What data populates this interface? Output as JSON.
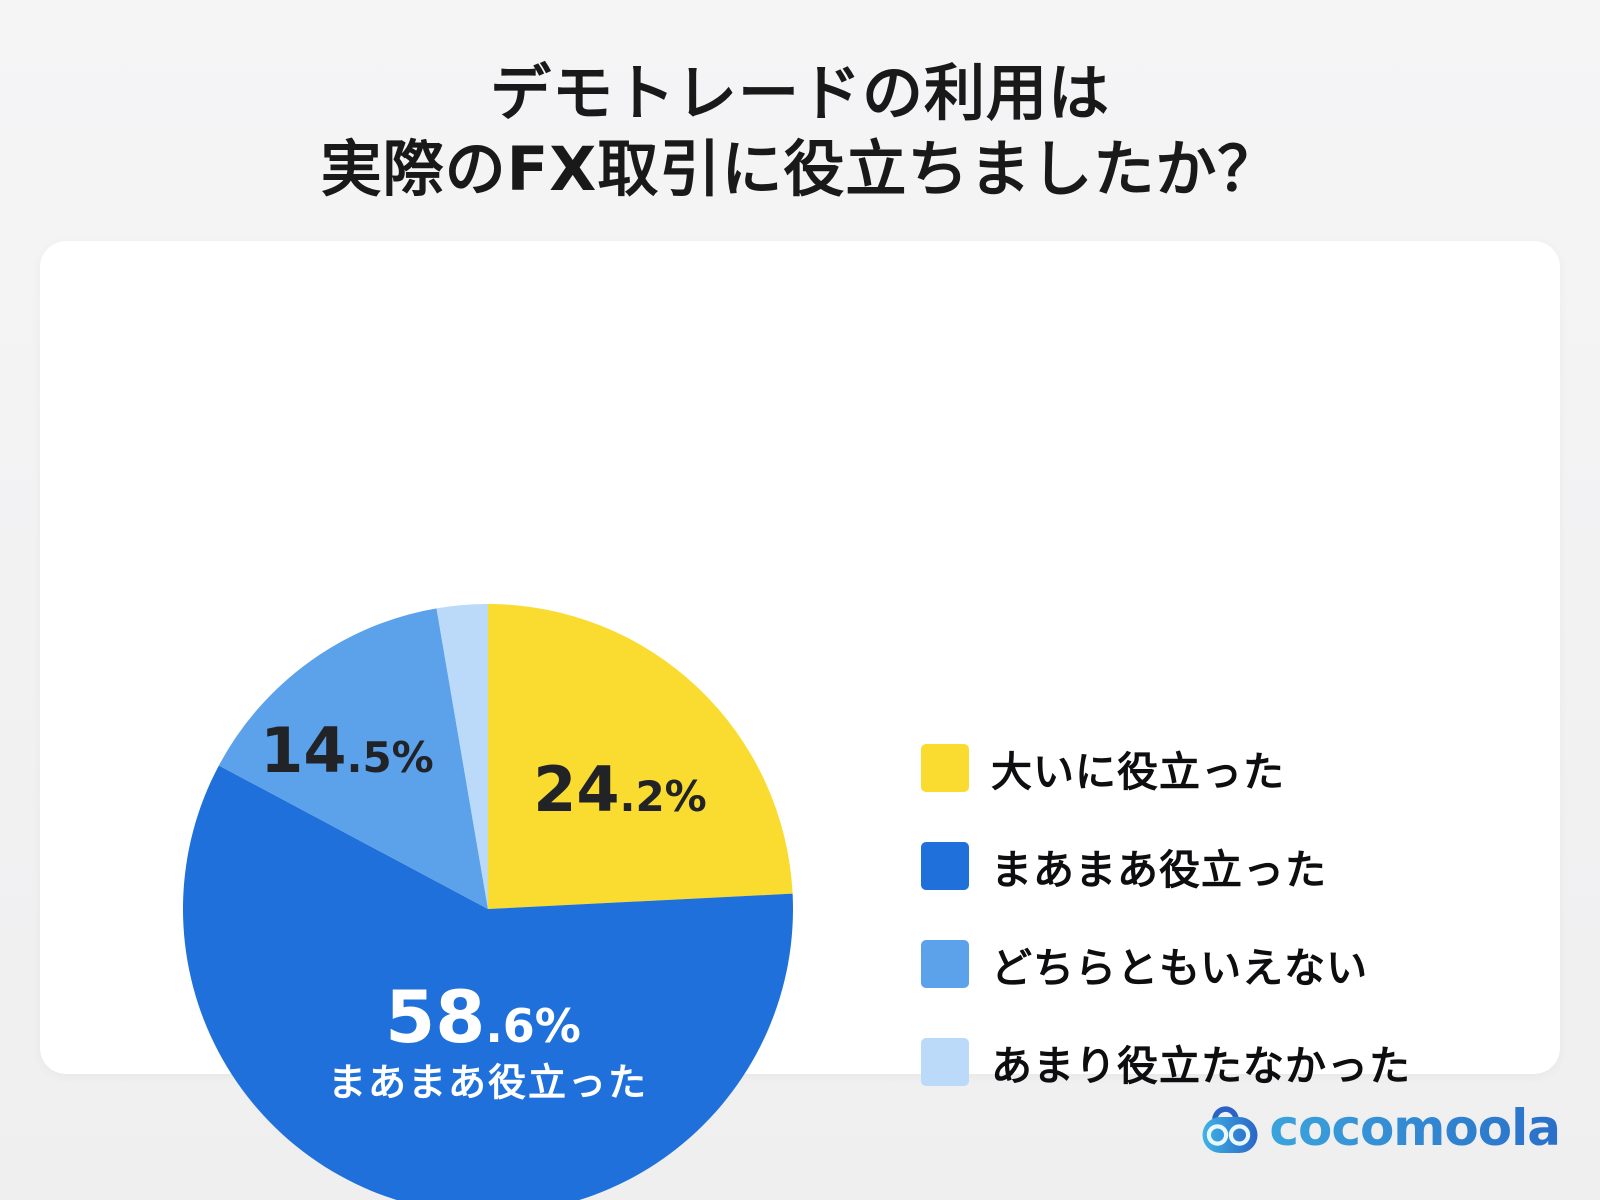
{
  "title": {
    "line1": "デモトレードの利用は",
    "line2": "実際のFX取引に役立ちましたか？"
  },
  "chart_data": {
    "type": "pie",
    "title": "デモトレードの利用は実際のFX取引に役立ちましたか？",
    "direction": "clockwise",
    "start_angle_deg": 0,
    "total": 100,
    "legend_position": "right",
    "slices": [
      {
        "label": "大いに役立った",
        "value": 24.2,
        "color": "#F9DC2F",
        "pct_main": "24",
        "pct_sub": ".2%"
      },
      {
        "label": "まあまあ役立った",
        "value": 58.6,
        "color": "#1F70DB",
        "pct_main": "58",
        "pct_sub": ".6%",
        "on_slice_label": "まあまあ役立った"
      },
      {
        "label": "どちらともいえない",
        "value": 14.5,
        "color": "#5CA2EB",
        "pct_main": "14",
        "pct_sub": ".5%"
      },
      {
        "label": "あまり役立たなかった",
        "value": 2.7,
        "color": "#BBD9F8"
      }
    ]
  },
  "logo": {
    "text": "cocomoola",
    "icon": "cocomoola-goggles-icon",
    "text_color_from": "#3BA4DC",
    "text_color_to": "#2A6FC9",
    "icon_color_from": "#3FB3E4",
    "icon_color_to": "#2A66C6",
    "icon_handle_color": "#2B62C6",
    "icon_eye_color": "#E9F8FD"
  },
  "colors": {
    "background": "#F1F1F2",
    "card": "#FFFFFF",
    "title_text": "#191919",
    "dark_label": "#222327",
    "light_label": "#FFFFFF"
  }
}
